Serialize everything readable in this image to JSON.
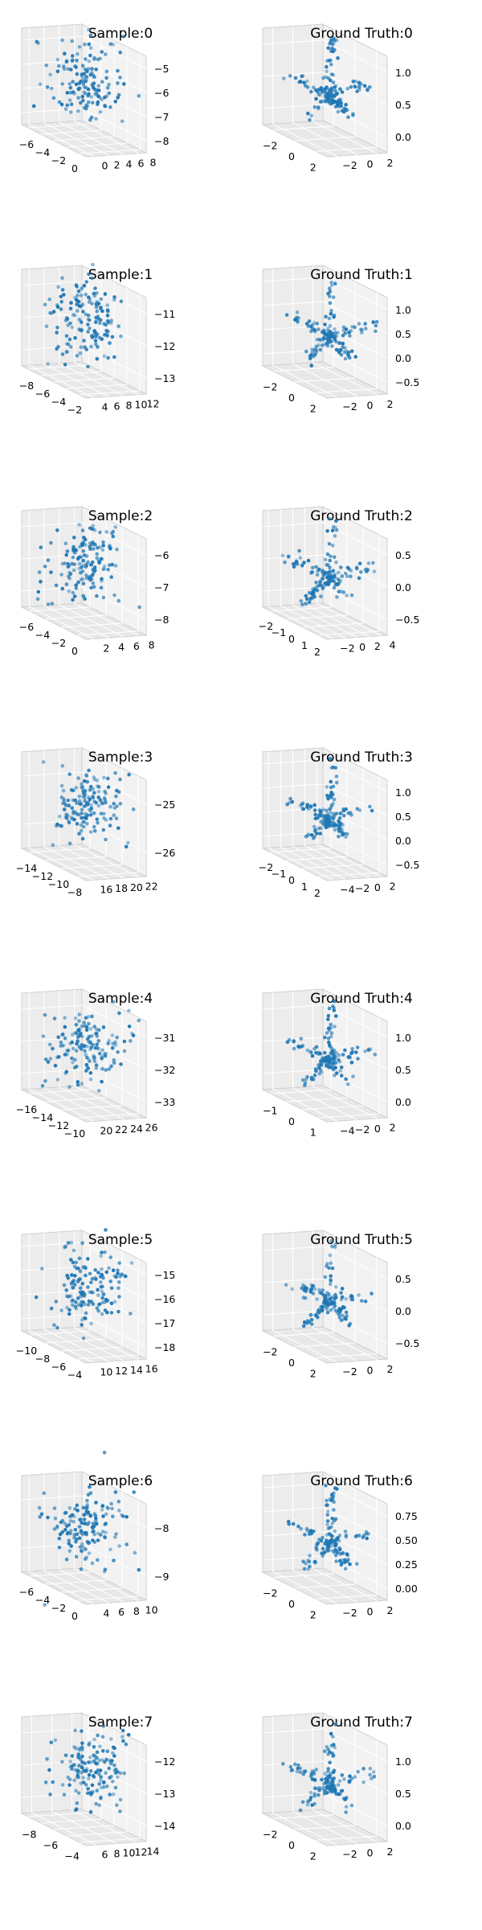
{
  "chart_data": [
    {
      "type": "scatter",
      "title": "Sample:0",
      "xticks": [
        "−6",
        "−4",
        "−2",
        "0"
      ],
      "yticks": [
        "0",
        "2",
        "4",
        "6",
        "8"
      ],
      "zticks": [
        "−5",
        "−6",
        "−7",
        "−8"
      ],
      "n_points": 150,
      "shape": "blob"
    },
    {
      "type": "scatter",
      "title": "Ground Truth:0",
      "xticks": [
        "−2",
        "0",
        "2"
      ],
      "yticks": [
        "−2",
        "0",
        "2"
      ],
      "zticks": [
        "1.0",
        "0.5",
        "0.0"
      ],
      "n_points": 150,
      "shape": "skeleton"
    },
    {
      "type": "scatter",
      "title": "Sample:1",
      "xticks": [
        "−8",
        "−6",
        "−4",
        "−2"
      ],
      "yticks": [
        "4",
        "6",
        "8",
        "10",
        "12"
      ],
      "zticks": [
        "−11",
        "−12",
        "−13"
      ],
      "n_points": 150,
      "shape": "blob"
    },
    {
      "type": "scatter",
      "title": "Ground Truth:1",
      "xticks": [
        "−2",
        "0",
        "2"
      ],
      "yticks": [
        "−2",
        "0",
        "2"
      ],
      "zticks": [
        "1.0",
        "0.5",
        "0.0",
        "−0.5"
      ],
      "n_points": 150,
      "shape": "skeleton"
    },
    {
      "type": "scatter",
      "title": "Sample:2",
      "xticks": [
        "−6",
        "−4",
        "−2",
        "0"
      ],
      "yticks": [
        "2",
        "4",
        "6",
        "8"
      ],
      "zticks": [
        "−6",
        "−7",
        "−8"
      ],
      "n_points": 150,
      "shape": "blob"
    },
    {
      "type": "scatter",
      "title": "Ground Truth:2",
      "xticks": [
        "−2",
        "−1",
        "0",
        "1",
        "2"
      ],
      "yticks": [
        "−2",
        "0",
        "2",
        "4"
      ],
      "zticks": [
        "0.5",
        "0.0",
        "−0.5"
      ],
      "n_points": 150,
      "shape": "skeleton"
    },
    {
      "type": "scatter",
      "title": "Sample:3",
      "xticks": [
        "−14",
        "−12",
        "−10",
        "−8"
      ],
      "yticks": [
        "16",
        "18",
        "20",
        "22"
      ],
      "zticks": [
        "−25",
        "−26"
      ],
      "n_points": 150,
      "shape": "blob"
    },
    {
      "type": "scatter",
      "title": "Ground Truth:3",
      "xticks": [
        "−2",
        "−1",
        "0",
        "1",
        "2"
      ],
      "yticks": [
        "−4",
        "−2",
        "0",
        "2"
      ],
      "zticks": [
        "1.0",
        "0.5",
        "0.0",
        "−0.5"
      ],
      "n_points": 150,
      "shape": "skeleton"
    },
    {
      "type": "scatter",
      "title": "Sample:4",
      "xticks": [
        "−16",
        "−14",
        "−12",
        "−10"
      ],
      "yticks": [
        "20",
        "22",
        "24",
        "26"
      ],
      "zticks": [
        "−31",
        "−32",
        "−33"
      ],
      "n_points": 150,
      "shape": "blob"
    },
    {
      "type": "scatter",
      "title": "Ground Truth:4",
      "xticks": [
        "−1",
        "0",
        "1"
      ],
      "yticks": [
        "−4",
        "−2",
        "0",
        "2"
      ],
      "zticks": [
        "1.0",
        "0.5",
        "0.0"
      ],
      "n_points": 150,
      "shape": "skeleton"
    },
    {
      "type": "scatter",
      "title": "Sample:5",
      "xticks": [
        "−10",
        "−8",
        "−6",
        "−4"
      ],
      "yticks": [
        "10",
        "12",
        "14",
        "16"
      ],
      "zticks": [
        "−15",
        "−16",
        "−17",
        "−18"
      ],
      "n_points": 150,
      "shape": "blob"
    },
    {
      "type": "scatter",
      "title": "Ground Truth:5",
      "xticks": [
        "−2",
        "0",
        "2"
      ],
      "yticks": [
        "−2",
        "0",
        "2"
      ],
      "zticks": [
        "0.5",
        "0.0",
        "−0.5"
      ],
      "n_points": 150,
      "shape": "skeleton"
    },
    {
      "type": "scatter",
      "title": "Sample:6",
      "xticks": [
        "−6",
        "−4",
        "−2",
        "0"
      ],
      "yticks": [
        "4",
        "6",
        "8",
        "10"
      ],
      "zticks": [
        "−8",
        "−9"
      ],
      "n_points": 150,
      "shape": "blob"
    },
    {
      "type": "scatter",
      "title": "Ground Truth:6",
      "xticks": [
        "−2",
        "0",
        "2"
      ],
      "yticks": [
        "−2",
        "0",
        "2"
      ],
      "zticks": [
        "0.75",
        "0.50",
        "0.25",
        "0.00"
      ],
      "n_points": 150,
      "shape": "skeleton"
    },
    {
      "type": "scatter",
      "title": "Sample:7",
      "xticks": [
        "−8",
        "−6",
        "−4"
      ],
      "yticks": [
        "6",
        "8",
        "10",
        "12",
        "14"
      ],
      "zticks": [
        "−12",
        "−13",
        "−14"
      ],
      "n_points": 150,
      "shape": "blob"
    },
    {
      "type": "scatter",
      "title": "Ground Truth:7",
      "xticks": [
        "−2",
        "0",
        "2"
      ],
      "yticks": [
        "−2",
        "0",
        "2"
      ],
      "zticks": [
        "1.0",
        "0.5",
        "0.0"
      ],
      "n_points": 150,
      "shape": "skeleton"
    }
  ],
  "colors": {
    "points": "#1f77b4",
    "pane_left": "#ececec",
    "pane_right": "#f2f2f2",
    "pane_floor": "#e8e8e8"
  }
}
